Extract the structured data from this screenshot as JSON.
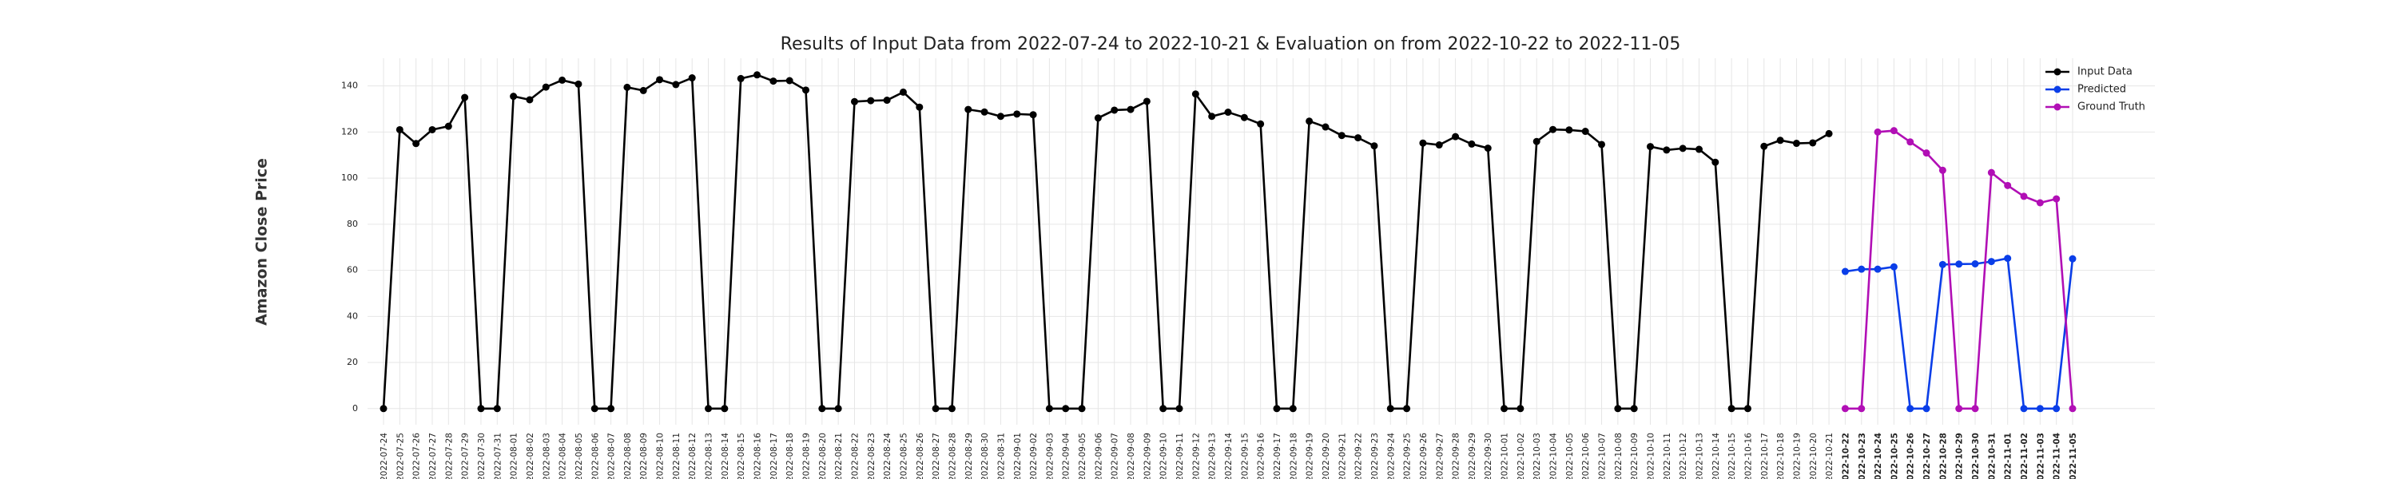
{
  "chart_data": {
    "type": "line",
    "title": "Results of Input Data from 2022-07-24 to 2022-10-21 & Evaluation on from 2022-10-22 to 2022-11-05",
    "y_label": "Amazon Close Price",
    "x": [
      "2022-07-24",
      "2022-07-25",
      "2022-07-26",
      "2022-07-27",
      "2022-07-28",
      "2022-07-29",
      "2022-07-30",
      "2022-07-31",
      "2022-08-01",
      "2022-08-02",
      "2022-08-03",
      "2022-08-04",
      "2022-08-05",
      "2022-08-06",
      "2022-08-07",
      "2022-08-08",
      "2022-08-09",
      "2022-08-10",
      "2022-08-11",
      "2022-08-12",
      "2022-08-13",
      "2022-08-14",
      "2022-08-15",
      "2022-08-16",
      "2022-08-17",
      "2022-08-18",
      "2022-08-19",
      "2022-08-20",
      "2022-08-21",
      "2022-08-22",
      "2022-08-23",
      "2022-08-24",
      "2022-08-25",
      "2022-08-26",
      "2022-08-27",
      "2022-08-28",
      "2022-08-29",
      "2022-08-30",
      "2022-08-31",
      "2022-09-01",
      "2022-09-02",
      "2022-09-03",
      "2022-09-04",
      "2022-09-05",
      "2022-09-06",
      "2022-09-07",
      "2022-09-08",
      "2022-09-09",
      "2022-09-10",
      "2022-09-11",
      "2022-09-12",
      "2022-09-13",
      "2022-09-14",
      "2022-09-15",
      "2022-09-16",
      "2022-09-17",
      "2022-09-18",
      "2022-09-19",
      "2022-09-20",
      "2022-09-21",
      "2022-09-22",
      "2022-09-23",
      "2022-09-24",
      "2022-09-25",
      "2022-09-26",
      "2022-09-27",
      "2022-09-28",
      "2022-09-29",
      "2022-09-30",
      "2022-10-01",
      "2022-10-02",
      "2022-10-03",
      "2022-10-04",
      "2022-10-05",
      "2022-10-06",
      "2022-10-07",
      "2022-10-08",
      "2022-10-09",
      "2022-10-10",
      "2022-10-11",
      "2022-10-12",
      "2022-10-13",
      "2022-10-14",
      "2022-10-15",
      "2022-10-16",
      "2022-10-17",
      "2022-10-18",
      "2022-10-19",
      "2022-10-20",
      "2022-10-21",
      "2022-10-22",
      "2022-10-23",
      "2022-10-24",
      "2022-10-25",
      "2022-10-26",
      "2022-10-27",
      "2022-10-28",
      "2022-10-29",
      "2022-10-30",
      "2022-10-31",
      "2022-11-01",
      "2022-11-02",
      "2022-11-03",
      "2022-11-04",
      "2022-11-05"
    ],
    "series": [
      {
        "name": "Input Data",
        "color": "#000000",
        "values": [
          0,
          121,
          115,
          121,
          122.5,
          135,
          0,
          0,
          135.5,
          134,
          139.5,
          142.5,
          140.8,
          0,
          0,
          139.4,
          138,
          142.7,
          140.6,
          143.5,
          0,
          0,
          143.2,
          144.8,
          142.1,
          142.3,
          138.2,
          0,
          0,
          133.2,
          133.6,
          133.8,
          137.3,
          130.8,
          0,
          0,
          129.8,
          128.7,
          126.8,
          127.8,
          127.5,
          0,
          0,
          0,
          126.1,
          129.5,
          129.8,
          133.3,
          0,
          0,
          136.5,
          126.8,
          128.6,
          126.3,
          123.5,
          0,
          0,
          124.7,
          122.2,
          118.5,
          117.5,
          114,
          0,
          0,
          115.2,
          114.4,
          118,
          114.8,
          113,
          0,
          0,
          115.9,
          121.1,
          120.9,
          120.3,
          114.6,
          0,
          0,
          113.7,
          112.2,
          112.9,
          112.5,
          106.9,
          0,
          0,
          113.8,
          116.4,
          115.1,
          115.3,
          119.3,
          null,
          null,
          null,
          null,
          null,
          null,
          null,
          null,
          null,
          null,
          null,
          null,
          null,
          null,
          null
        ]
      },
      {
        "name": "Predicted",
        "color": "#0a3ee8",
        "values": [
          null,
          null,
          null,
          null,
          null,
          null,
          null,
          null,
          null,
          null,
          null,
          null,
          null,
          null,
          null,
          null,
          null,
          null,
          null,
          null,
          null,
          null,
          null,
          null,
          null,
          null,
          null,
          null,
          null,
          null,
          null,
          null,
          null,
          null,
          null,
          null,
          null,
          null,
          null,
          null,
          null,
          null,
          null,
          null,
          null,
          null,
          null,
          null,
          null,
          null,
          null,
          null,
          null,
          null,
          null,
          null,
          null,
          null,
          null,
          null,
          null,
          null,
          null,
          null,
          null,
          null,
          null,
          null,
          null,
          null,
          null,
          null,
          null,
          null,
          null,
          null,
          null,
          null,
          null,
          null,
          null,
          null,
          null,
          null,
          null,
          null,
          null,
          null,
          null,
          null,
          59.5,
          60.5,
          60.5,
          61.5,
          0,
          0,
          62.5,
          62.7,
          62.8,
          63.8,
          65.2,
          0,
          0,
          0,
          65
        ]
      },
      {
        "name": "Ground Truth",
        "color": "#b10fb5",
        "values": [
          null,
          null,
          null,
          null,
          null,
          null,
          null,
          null,
          null,
          null,
          null,
          null,
          null,
          null,
          null,
          null,
          null,
          null,
          null,
          null,
          null,
          null,
          null,
          null,
          null,
          null,
          null,
          null,
          null,
          null,
          null,
          null,
          null,
          null,
          null,
          null,
          null,
          null,
          null,
          null,
          null,
          null,
          null,
          null,
          null,
          null,
          null,
          null,
          null,
          null,
          null,
          null,
          null,
          null,
          null,
          null,
          null,
          null,
          null,
          null,
          null,
          null,
          null,
          null,
          null,
          null,
          null,
          null,
          null,
          null,
          null,
          null,
          null,
          null,
          null,
          null,
          null,
          null,
          null,
          null,
          null,
          null,
          null,
          null,
          null,
          null,
          null,
          null,
          null,
          null,
          0,
          0,
          120,
          120.6,
          115.7,
          110.9,
          103.4,
          0,
          0,
          102.4,
          96.8,
          92.1,
          89.3,
          91,
          0
        ]
      }
    ],
    "ylim": [
      -7,
      152
    ],
    "yticks": [
      0,
      20,
      40,
      60,
      80,
      100,
      120,
      140
    ],
    "grid": true,
    "legend": "upper right"
  }
}
